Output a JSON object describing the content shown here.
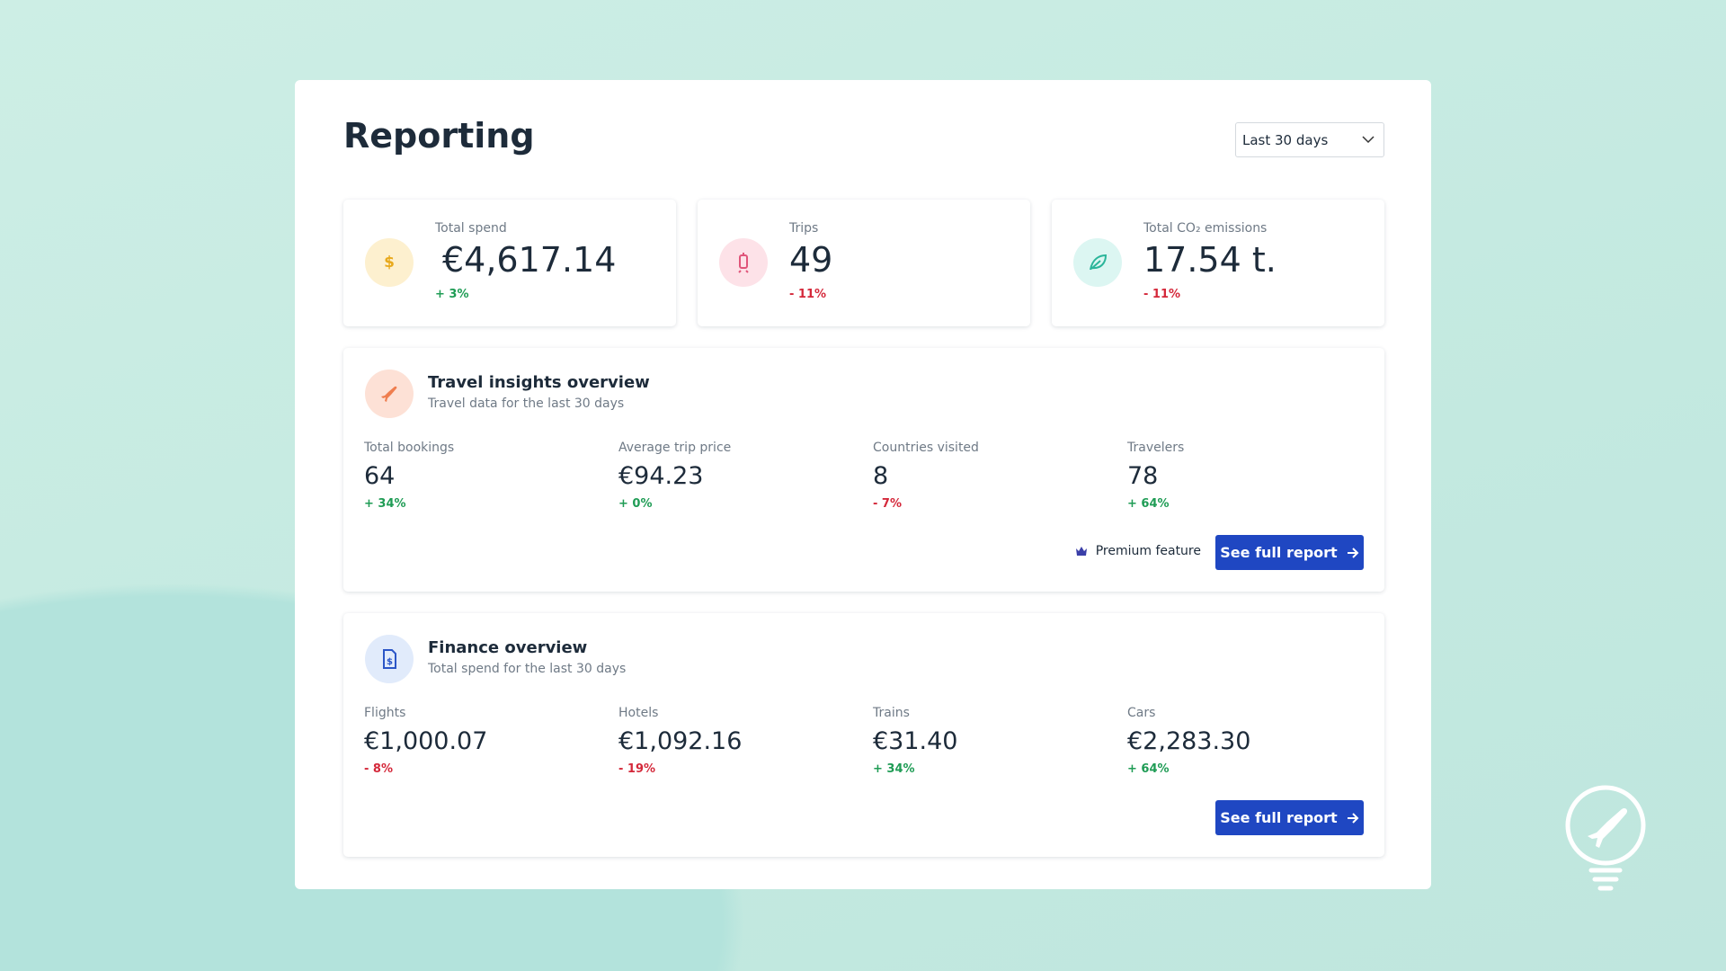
{
  "header": {
    "title": "Reporting",
    "period": "Last 30 days"
  },
  "kpis": [
    {
      "label": "Total spend",
      "value": "€4,617.14",
      "change": "+ 3%"
    },
    {
      "label": "Trips",
      "value": "49",
      "change": "- 11%"
    },
    {
      "label": "Total CO₂ emissions",
      "value": "17.54 t.",
      "change": "- 11%"
    }
  ],
  "sections": [
    {
      "title": "Travel insights overview",
      "subtitle": "Travel data for the last 30 days",
      "metrics": [
        {
          "label": "Total bookings",
          "value": "64",
          "change": "+ 34%"
        },
        {
          "label": "Average trip price",
          "value": "€94.23",
          "change": "+ 0%"
        },
        {
          "label": "Countries visited",
          "value": "8",
          "change": "- 7%"
        },
        {
          "label": "Travelers",
          "value": "78",
          "change": "+ 64%"
        }
      ],
      "premium": "Premium feature",
      "button": "See full report"
    },
    {
      "title": "Finance overview",
      "subtitle": "Total spend for the last 30 days",
      "metrics": [
        {
          "label": "Flights",
          "value": "€1,000.07",
          "change": "- 8%"
        },
        {
          "label": "Hotels",
          "value": "€1,092.16",
          "change": "- 19%"
        },
        {
          "label": "Trains",
          "value": "€31.40",
          "change": "+ 34%"
        },
        {
          "label": "Cars",
          "value": "€2,283.30",
          "change": "+ 64%"
        }
      ],
      "button": "See full report"
    }
  ]
}
